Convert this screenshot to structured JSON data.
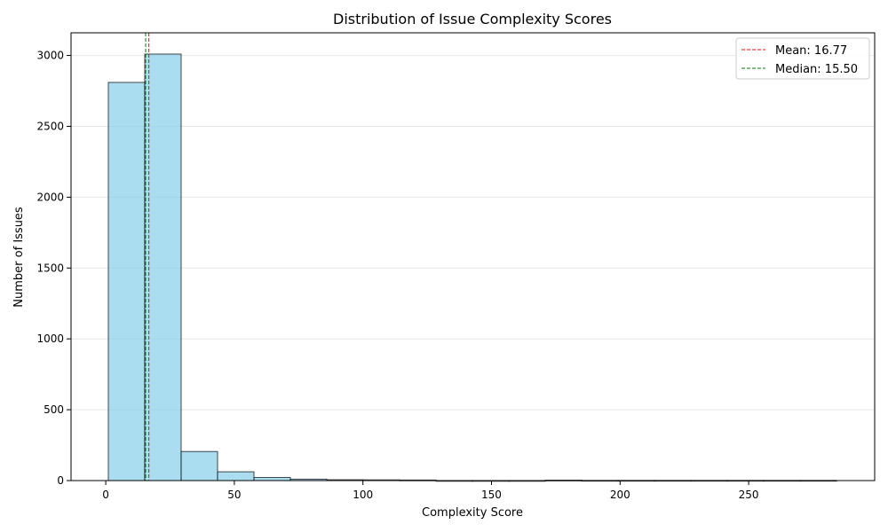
{
  "chart_data": {
    "type": "bar",
    "title": "Distribution of Issue Complexity Scores",
    "xlabel": "Complexity Score",
    "ylabel": "Number of Issues",
    "xlim": [
      -13.5,
      299.0
    ],
    "ylim": [
      0,
      3160
    ],
    "bin_edges": [
      1.0,
      15.16,
      29.32,
      43.48,
      57.64,
      71.8,
      85.96,
      100.12,
      114.28,
      128.44,
      142.6,
      156.76,
      170.92,
      185.08,
      199.24,
      213.4,
      227.56,
      241.72,
      255.88,
      270.04,
      284.2
    ],
    "values": [
      2810,
      3010,
      205,
      62,
      22,
      10,
      6,
      5,
      4,
      0,
      0,
      0,
      3,
      1,
      1,
      1,
      1,
      1,
      1,
      1
    ],
    "xticks": [
      0,
      50,
      100,
      150,
      200,
      250
    ],
    "xtick_labels": [
      "0",
      "50",
      "100",
      "150",
      "200",
      "250"
    ],
    "yticks": [
      0,
      500,
      1000,
      1500,
      2000,
      2500,
      3000
    ],
    "ytick_labels": [
      "0",
      "500",
      "1000",
      "1500",
      "2000",
      "2500",
      "3000"
    ],
    "grid": "y",
    "legend_position": "top-right",
    "reference_lines": [
      {
        "name": "Mean: 16.77",
        "x": 16.77,
        "color": "#ff0000"
      },
      {
        "name": "Median: 15.50",
        "x": 15.5,
        "color": "#008000"
      }
    ],
    "bar_color": "#87ceeb",
    "bar_edge_color": "#000000"
  }
}
